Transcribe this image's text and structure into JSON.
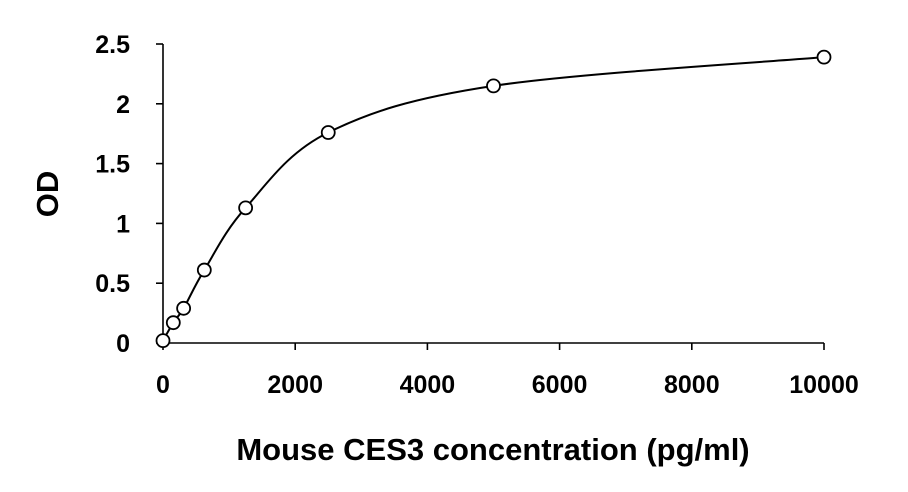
{
  "chart_data": {
    "type": "scatter",
    "title": "",
    "xlabel": "Mouse CES3 concentration (pg/ml)",
    "ylabel": "OD",
    "xlim": [
      0,
      10000
    ],
    "ylim": [
      0,
      2.5
    ],
    "xticks": [
      0,
      2000,
      4000,
      6000,
      8000,
      10000
    ],
    "yticks": [
      0,
      0.5,
      1,
      1.5,
      2,
      2.5
    ],
    "xtick_labels": [
      "0",
      "2000",
      "4000",
      "6000",
      "8000",
      "10000"
    ],
    "ytick_labels": [
      "0",
      "0.5",
      "1",
      "1.5",
      "2",
      "2.5"
    ],
    "grid": false,
    "legend": "none",
    "marker": "open-circle",
    "fit": "smooth curve through points",
    "series": [
      {
        "x": [
          0,
          156,
          312,
          625,
          1250,
          2500,
          5000,
          10000
        ],
        "y": [
          0.02,
          0.17,
          0.29,
          0.61,
          1.13,
          1.76,
          2.15,
          2.39
        ]
      }
    ]
  }
}
